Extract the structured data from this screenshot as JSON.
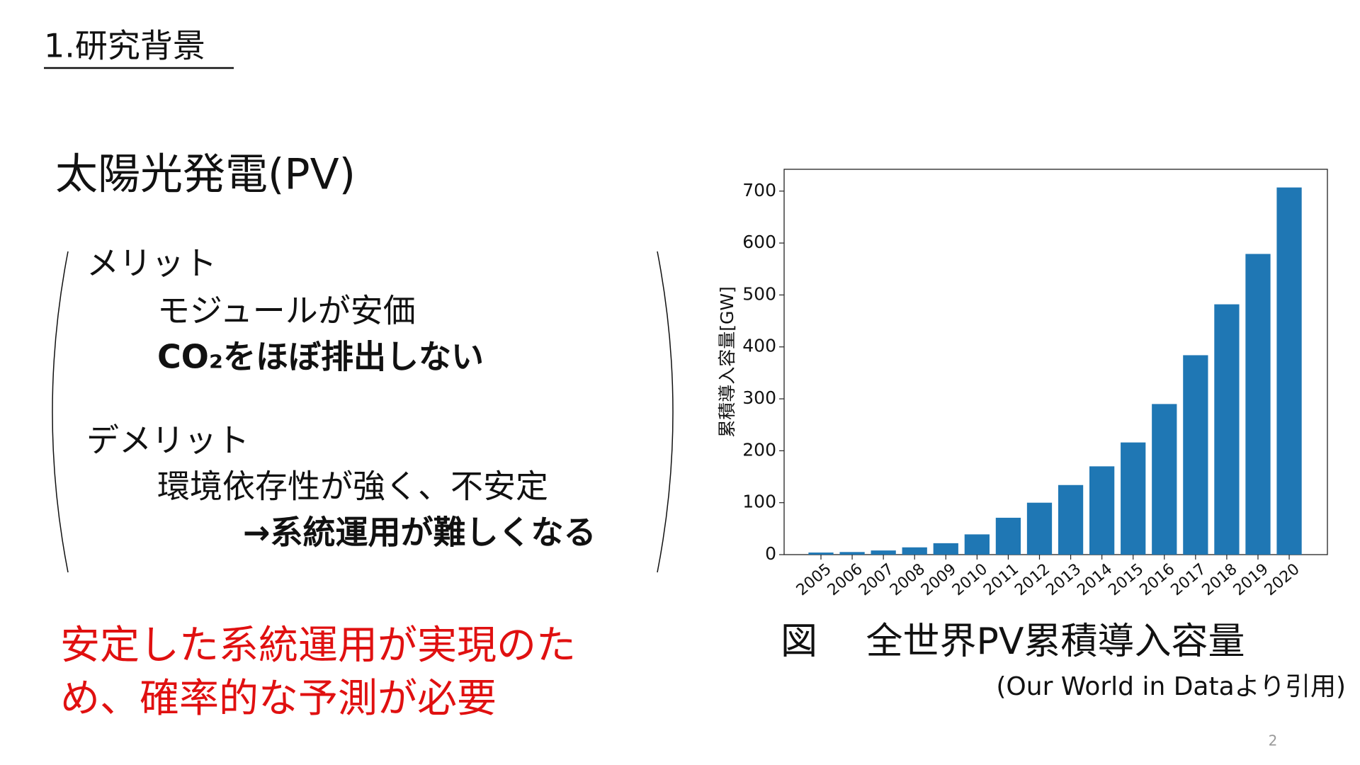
{
  "header": {
    "title": "1.研究背景"
  },
  "topic": "太陽光発電(PV)",
  "merits": {
    "heading": "メリット",
    "items": [
      "モジュールが安価",
      "CO₂をほぼ排出しない"
    ]
  },
  "demerits": {
    "heading": "デメリット",
    "items": [
      "環境依存性が強く、不安定",
      "→系統運用が難しくなる"
    ]
  },
  "conclusion": [
    "安定した系統運用が実現のた",
    "め、確率的な予測が必要"
  ],
  "chart_data": {
    "type": "bar",
    "y_label": "累積導入容量[GW]",
    "categories": [
      "2005",
      "2006",
      "2007",
      "2008",
      "2009",
      "2010",
      "2011",
      "2012",
      "2013",
      "2014",
      "2015",
      "2016",
      "2017",
      "2018",
      "2019",
      "2020"
    ],
    "values": [
      4,
      5,
      8,
      14,
      22,
      39,
      71,
      100,
      134,
      170,
      216,
      290,
      384,
      482,
      579,
      707
    ],
    "color": "#1f77b4",
    "ylim": [
      0,
      742
    ],
    "yticks": [
      0,
      100,
      200,
      300,
      400,
      500,
      600,
      700
    ]
  },
  "caption": "図　 全世界PV累積導入容量",
  "source": "(Our World in Dataより引用)",
  "page_number": "2"
}
